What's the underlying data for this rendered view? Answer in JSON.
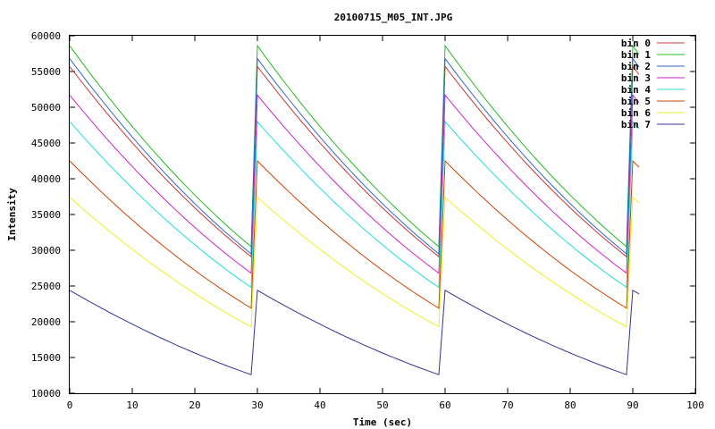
{
  "chart_data": {
    "type": "line",
    "title": "20100715_M05_INT.JPG",
    "xlabel": "Time (sec)",
    "ylabel": "Intensity",
    "xlim": [
      0,
      100
    ],
    "ylim": [
      10000,
      60000
    ],
    "x_ticks": [
      0,
      10,
      20,
      30,
      40,
      50,
      60,
      70,
      80,
      90,
      100
    ],
    "y_ticks": [
      10000,
      15000,
      20000,
      25000,
      30000,
      35000,
      40000,
      45000,
      50000,
      55000,
      60000
    ],
    "grid": false,
    "legend_position": "top-right",
    "cycle": {
      "period_sec": 30,
      "points_per_cycle": 30,
      "num_cycles": 3,
      "tail_points": 2
    },
    "series": [
      {
        "name": "bin 0",
        "color": "#cc3333",
        "start": 55700,
        "end": 29100,
        "curvature": 0.25
      },
      {
        "name": "bin 1",
        "color": "#22bb22",
        "start": 58600,
        "end": 30500,
        "curvature": 0.25
      },
      {
        "name": "bin 2",
        "color": "#3366cc",
        "start": 56800,
        "end": 29500,
        "curvature": 0.25
      },
      {
        "name": "bin 3",
        "color": "#cc22cc",
        "start": 51700,
        "end": 26800,
        "curvature": 0.25
      },
      {
        "name": "bin 4",
        "color": "#22dddd",
        "start": 48000,
        "end": 24800,
        "curvature": 0.25
      },
      {
        "name": "bin 5",
        "color": "#cc4400",
        "start": 42500,
        "end": 21900,
        "curvature": 0.25
      },
      {
        "name": "bin 6",
        "color": "#eeee22",
        "start": 37400,
        "end": 19300,
        "curvature": 0.25
      },
      {
        "name": "bin 7",
        "color": "#333399",
        "start": 24400,
        "end": 12600,
        "curvature": 0.25
      }
    ]
  }
}
